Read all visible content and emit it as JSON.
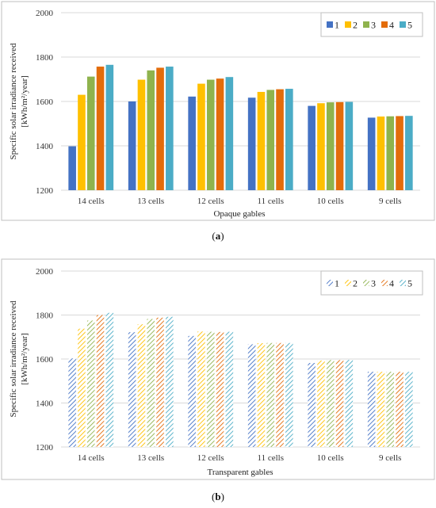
{
  "colors": {
    "s1": "#4472c4",
    "s2": "#ffc000",
    "s3": "#8fb34d",
    "s4": "#e36c0a",
    "s5": "#4bacc6",
    "grid": "#d9d9d9",
    "frame": "#bfbfbf"
  },
  "chart_data": [
    {
      "type": "bar",
      "style": "solid",
      "caption": "a",
      "title": "",
      "xlabel": "Opaque gables",
      "ylabel_line1": "Specific solar irradiance received",
      "ylabel_line2": "[kWh/m²/year]",
      "ylim": [
        1200,
        2000
      ],
      "yticks": [
        "1200",
        "1400",
        "1600",
        "1800",
        "2000"
      ],
      "grid": true,
      "legend_position": "top-right",
      "categories": [
        "14 cells",
        "13 cells",
        "12 cells",
        "11 cells",
        "10 cells",
        "9 cells"
      ],
      "series": [
        {
          "name": "1",
          "values": [
            1398,
            1600,
            1622,
            1617,
            1580,
            1527
          ]
        },
        {
          "name": "2",
          "values": [
            1630,
            1698,
            1680,
            1643,
            1592,
            1532
          ]
        },
        {
          "name": "3",
          "values": [
            1712,
            1740,
            1698,
            1652,
            1596,
            1533
          ]
        },
        {
          "name": "4",
          "values": [
            1757,
            1752,
            1703,
            1655,
            1597,
            1534
          ]
        },
        {
          "name": "5",
          "values": [
            1765,
            1757,
            1710,
            1657,
            1598,
            1535
          ]
        }
      ]
    },
    {
      "type": "bar",
      "style": "hatched",
      "caption": "b",
      "title": "",
      "xlabel": "Transparent gables",
      "ylabel_line1": "Specific solar irradiance received",
      "ylabel_line2": "[kWh/m²/year]",
      "ylim": [
        1200,
        2000
      ],
      "yticks": [
        "1200",
        "1400",
        "1600",
        "1800",
        "2000"
      ],
      "grid": true,
      "legend_position": "top-right",
      "categories": [
        "14 cells",
        "13 cells",
        "12 cells",
        "11 cells",
        "10 cells",
        "9 cells"
      ],
      "series": [
        {
          "name": "1",
          "values": [
            1603,
            1722,
            1705,
            1667,
            1582,
            1542
          ]
        },
        {
          "name": "2",
          "values": [
            1738,
            1758,
            1725,
            1672,
            1593,
            1542
          ]
        },
        {
          "name": "3",
          "values": [
            1775,
            1782,
            1724,
            1673,
            1595,
            1542
          ]
        },
        {
          "name": "4",
          "values": [
            1800,
            1788,
            1723,
            1673,
            1595,
            1542
          ]
        },
        {
          "name": "5",
          "values": [
            1810,
            1792,
            1724,
            1673,
            1596,
            1542
          ]
        }
      ]
    }
  ]
}
